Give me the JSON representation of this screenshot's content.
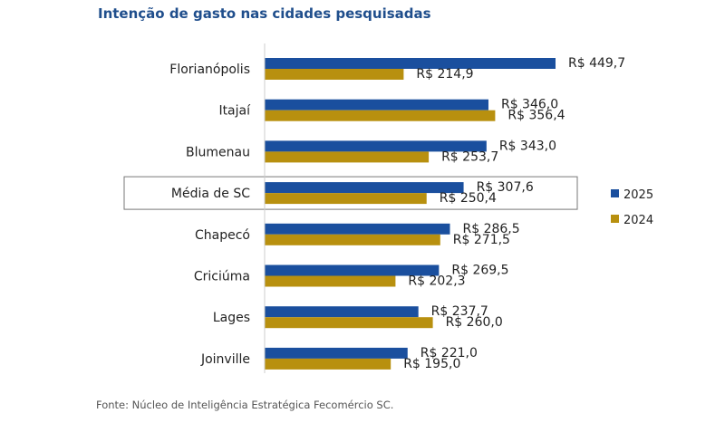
{
  "title": "Intenção de gasto nas cidades pesquisadas",
  "footer": "Fonte: Núcleo de Inteligência Estratégica Fecomércio SC.",
  "colors": {
    "s2025": "#1a4f9e",
    "s2024": "#b8900f",
    "highlight_border": "#777777"
  },
  "chart_data": {
    "type": "bar",
    "orientation": "horizontal",
    "categories": [
      "Florianópolis",
      "Itajaí",
      "Blumenau",
      "Média de SC",
      "Chapecó",
      "Criciúma",
      "Lages",
      "Joinville"
    ],
    "series": [
      {
        "name": "2025",
        "values": [
          449.7,
          346.0,
          343.0,
          307.6,
          286.5,
          269.5,
          237.7,
          221.0
        ],
        "labels": [
          "R$ 449,7",
          "R$ 346,0",
          "R$ 343,0",
          "R$ 307,6",
          "R$ 286,5",
          "R$ 269,5",
          "R$ 237,7",
          "R$ 221,0"
        ]
      },
      {
        "name": "2024",
        "values": [
          214.9,
          356.4,
          253.7,
          250.4,
          271.5,
          202.3,
          260.0,
          195.0
        ],
        "labels": [
          "R$ 214,9",
          "R$ 356,4",
          "R$ 253,7",
          "R$ 250,4",
          "R$ 271,5",
          "R$ 202,3",
          "R$ 260,0",
          "R$ 195,0"
        ]
      }
    ],
    "highlighted_category": "Média de SC",
    "legend_position": "right",
    "grid": false,
    "xlim": [
      0,
      449.7
    ]
  }
}
